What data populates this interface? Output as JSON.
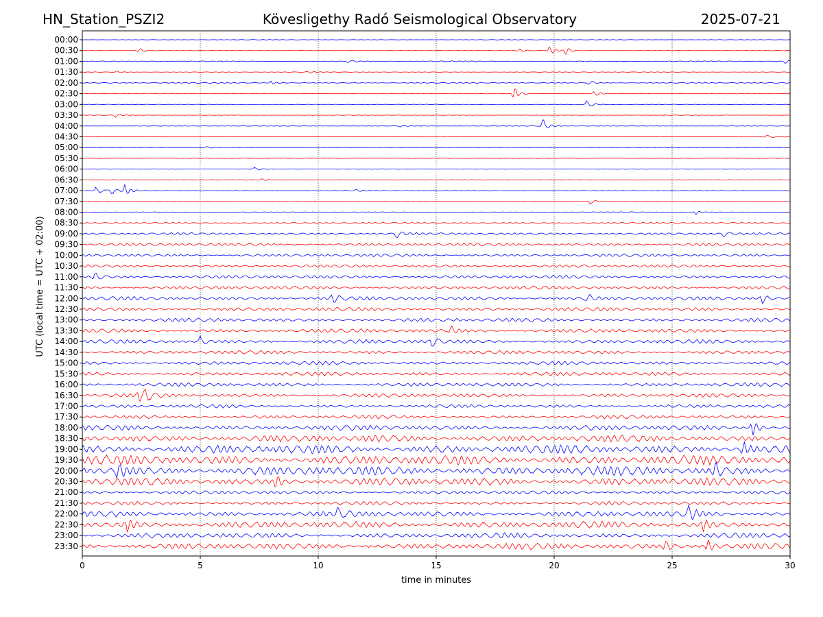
{
  "header": {
    "station": "HN_Station_PSZI2",
    "observatory": "Kövesligethy Radó Seismological Observatory",
    "date": "2025-07-21"
  },
  "chart_data": {
    "type": "line",
    "title": "Kövesligethy Radó Seismological Observatory",
    "xlabel": "time in minutes",
    "ylabel": "UTC (local time = UTC + 02:00)",
    "xlim": [
      0,
      30
    ],
    "xticks": [
      "0",
      "5",
      "10",
      "15",
      "20",
      "25",
      "30"
    ],
    "grid": "vertical dotted lines at x = 5, 10, 15, 20, 25",
    "rows": [
      "00:00",
      "00:30",
      "01:00",
      "01:30",
      "02:00",
      "02:30",
      "03:00",
      "03:30",
      "04:00",
      "04:30",
      "05:00",
      "05:30",
      "06:00",
      "06:30",
      "07:00",
      "07:30",
      "08:00",
      "08:30",
      "09:00",
      "09:30",
      "10:00",
      "10:30",
      "11:00",
      "11:30",
      "12:00",
      "12:30",
      "13:00",
      "13:30",
      "14:00",
      "14:30",
      "15:00",
      "15:30",
      "16:00",
      "16:30",
      "17:00",
      "17:30",
      "18:00",
      "18:30",
      "19:00",
      "19:30",
      "20:00",
      "20:30",
      "21:00",
      "21:30",
      "22:00",
      "22:30",
      "23:00",
      "23:30"
    ],
    "colors": [
      "#0000ff",
      "#ff0000"
    ],
    "noise_level": [
      0.3,
      0.3,
      0.6,
      0.4,
      0.6,
      0.3,
      0.3,
      0.3,
      0.3,
      0.3,
      0.3,
      0.3,
      0.3,
      0.4,
      0.5,
      0.4,
      0.6,
      1.0,
      1.5,
      2.0,
      2.0,
      2.0,
      2.2,
      2.3,
      2.6,
      2.6,
      2.6,
      2.6,
      2.6,
      2.4,
      2.4,
      2.5,
      2.5,
      2.5,
      2.3,
      2.5,
      3.5,
      4.8,
      6.0,
      6.5,
      6.5,
      5.2,
      2.3,
      2.5,
      3.8,
      4.5,
      3.5,
      4.2
    ],
    "events": [
      {
        "row": "00:30",
        "minute": 2.4,
        "amplitude": 4
      },
      {
        "row": "00:30",
        "minute": 18.5,
        "amplitude": 3
      },
      {
        "row": "00:30",
        "minute": 19.8,
        "amplitude": 7
      },
      {
        "row": "00:30",
        "minute": 20.5,
        "amplitude": 6
      },
      {
        "row": "01:00",
        "minute": 11.3,
        "amplitude": 3
      },
      {
        "row": "01:00",
        "minute": 29.8,
        "amplitude": 3
      },
      {
        "row": "01:30",
        "minute": 1.4,
        "amplitude": 2
      },
      {
        "row": "01:30",
        "minute": 9.6,
        "amplitude": 2
      },
      {
        "row": "02:00",
        "minute": 8.0,
        "amplitude": 3
      },
      {
        "row": "02:00",
        "minute": 21.5,
        "amplitude": 4
      },
      {
        "row": "02:30",
        "minute": 18.3,
        "amplitude": 10
      },
      {
        "row": "02:30",
        "minute": 21.7,
        "amplitude": 4
      },
      {
        "row": "03:00",
        "minute": 21.4,
        "amplitude": 7
      },
      {
        "row": "03:30",
        "minute": 1.4,
        "amplitude": 3
      },
      {
        "row": "04:00",
        "minute": 19.5,
        "amplitude": 11
      },
      {
        "row": "04:00",
        "minute": 13.5,
        "amplitude": 2
      },
      {
        "row": "04:30",
        "minute": 29.0,
        "amplitude": 3
      },
      {
        "row": "05:00",
        "minute": 5.3,
        "amplitude": 2
      },
      {
        "row": "06:00",
        "minute": 7.3,
        "amplitude": 3
      },
      {
        "row": "06:30",
        "minute": 7.6,
        "amplitude": 2
      },
      {
        "row": "07:00",
        "minute": 0.6,
        "amplitude": 6
      },
      {
        "row": "07:00",
        "minute": 1.2,
        "amplitude": 6
      },
      {
        "row": "07:00",
        "minute": 1.8,
        "amplitude": 8
      },
      {
        "row": "07:00",
        "minute": 11.6,
        "amplitude": 2
      },
      {
        "row": "07:30",
        "minute": 21.5,
        "amplitude": 4
      },
      {
        "row": "08:00",
        "minute": 26.0,
        "amplitude": 3
      },
      {
        "row": "09:00",
        "minute": 13.3,
        "amplitude": 6
      },
      {
        "row": "09:00",
        "minute": 27.2,
        "amplitude": 4
      },
      {
        "row": "11:00",
        "minute": 0.5,
        "amplitude": 7
      },
      {
        "row": "12:00",
        "minute": 10.6,
        "amplitude": 7
      },
      {
        "row": "12:00",
        "minute": 21.4,
        "amplitude": 6
      },
      {
        "row": "12:00",
        "minute": 28.8,
        "amplitude": 10
      },
      {
        "row": "13:30",
        "minute": 15.6,
        "amplitude": 8
      },
      {
        "row": "14:00",
        "minute": 5.0,
        "amplitude": 7
      },
      {
        "row": "14:00",
        "minute": 14.8,
        "amplitude": 11
      },
      {
        "row": "16:30",
        "minute": 2.4,
        "amplitude": 9
      },
      {
        "row": "16:30",
        "minute": 2.7,
        "amplitude": 8
      },
      {
        "row": "18:00",
        "minute": 28.4,
        "amplitude": 13
      },
      {
        "row": "19:00",
        "minute": 28.0,
        "amplitude": 10
      },
      {
        "row": "20:00",
        "minute": 1.5,
        "amplitude": 11
      },
      {
        "row": "20:00",
        "minute": 26.8,
        "amplitude": 11
      },
      {
        "row": "20:30",
        "minute": 8.2,
        "amplitude": 10
      },
      {
        "row": "22:00",
        "minute": 10.8,
        "amplitude": 9
      },
      {
        "row": "22:00",
        "minute": 25.7,
        "amplitude": 10
      },
      {
        "row": "22:30",
        "minute": 1.9,
        "amplitude": 10
      },
      {
        "row": "22:30",
        "minute": 26.3,
        "amplitude": 9
      },
      {
        "row": "23:30",
        "minute": 24.7,
        "amplitude": 8
      },
      {
        "row": "23:30",
        "minute": 26.5,
        "amplitude": 11
      }
    ]
  }
}
